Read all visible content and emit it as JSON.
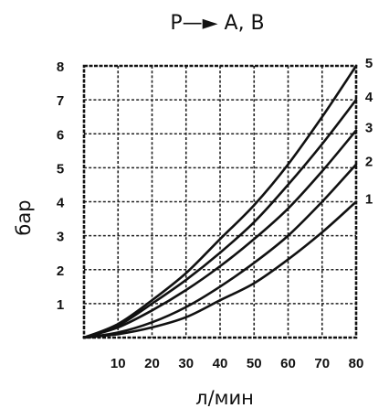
{
  "chart_data": {
    "type": "line",
    "title": "P—► A,  B",
    "xlabel": "л/мин",
    "ylabel": "бар",
    "xlim": [
      0,
      80
    ],
    "ylim": [
      0,
      8
    ],
    "x_ticks": [
      10,
      20,
      30,
      40,
      50,
      60,
      70,
      80
    ],
    "y_ticks": [
      1,
      2,
      3,
      4,
      5,
      6,
      7,
      8
    ],
    "grid": true,
    "series": [
      {
        "name": "1",
        "x": [
          0,
          10,
          20,
          30,
          40,
          50,
          60,
          70,
          80
        ],
        "y": [
          0,
          0.1,
          0.3,
          0.6,
          1.1,
          1.6,
          2.3,
          3.1,
          4.0
        ]
      },
      {
        "name": "2",
        "x": [
          0,
          10,
          20,
          30,
          40,
          50,
          60,
          70,
          80
        ],
        "y": [
          0,
          0.15,
          0.45,
          0.9,
          1.5,
          2.2,
          3.0,
          4.0,
          5.1
        ]
      },
      {
        "name": "3",
        "x": [
          0,
          10,
          20,
          30,
          40,
          50,
          60,
          70,
          80
        ],
        "y": [
          0,
          0.3,
          0.8,
          1.4,
          2.1,
          2.9,
          3.8,
          4.9,
          6.1
        ]
      },
      {
        "name": "4",
        "x": [
          0,
          10,
          20,
          30,
          40,
          50,
          60,
          70,
          80
        ],
        "y": [
          0,
          0.35,
          1.0,
          1.7,
          2.5,
          3.4,
          4.5,
          5.7,
          7.0
        ]
      },
      {
        "name": "5",
        "x": [
          0,
          10,
          20,
          30,
          40,
          50,
          60,
          70,
          80
        ],
        "y": [
          0,
          0.4,
          1.1,
          1.9,
          2.9,
          3.9,
          5.1,
          6.5,
          8.0
        ]
      }
    ]
  }
}
